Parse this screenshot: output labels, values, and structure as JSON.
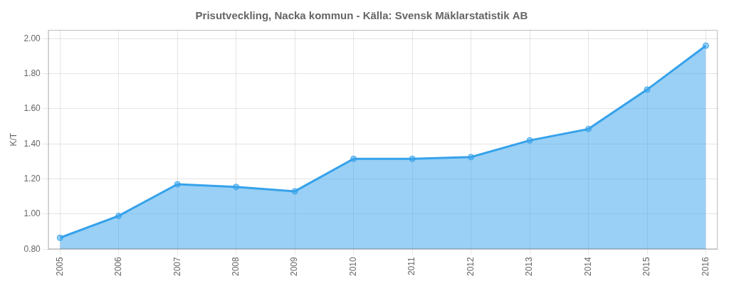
{
  "chart_data": {
    "type": "area",
    "title": "Prisutveckling, Nacka kommun - Källa: Svensk Mäklarstatistik AB",
    "ylabel": "K/T",
    "x": [
      2005,
      2006,
      2007,
      2008,
      2009,
      2010,
      2011,
      2012,
      2013,
      2014,
      2015,
      2016
    ],
    "values": [
      0.865,
      0.99,
      1.17,
      1.155,
      1.13,
      1.315,
      1.315,
      1.325,
      1.42,
      1.485,
      1.71,
      1.96
    ],
    "xlim": [
      2004.8,
      2016.2
    ],
    "xticks": [
      2005,
      2006,
      2007,
      2008,
      2009,
      2010,
      2011,
      2012,
      2013,
      2014,
      2015,
      2016
    ],
    "ylim": [
      0.8,
      2.05
    ],
    "yticks": [
      {
        "value": 0.8,
        "label": "0.80"
      },
      {
        "value": 1.0,
        "label": "1.00"
      },
      {
        "value": 1.2,
        "label": "1.20"
      },
      {
        "value": 1.4,
        "label": "1.40"
      },
      {
        "value": 1.6,
        "label": "1.60"
      },
      {
        "value": 1.8,
        "label": "1.80"
      },
      {
        "value": 2.0,
        "label": "2.00"
      }
    ],
    "grid": true,
    "marker": "circle"
  }
}
